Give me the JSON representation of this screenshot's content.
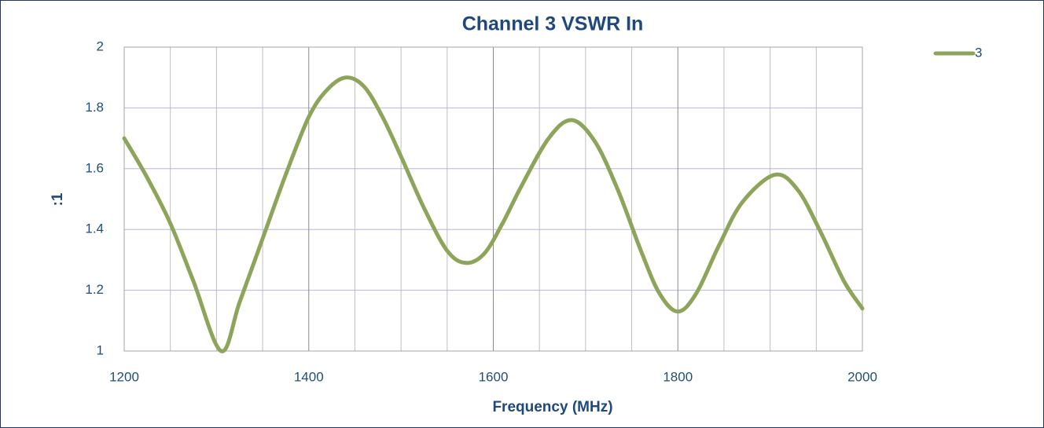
{
  "chart_data": {
    "type": "line",
    "title": "Channel 3 VSWR In",
    "x_label": "Frequency (MHz)",
    "y_label": ":1",
    "x": [
      1200,
      1225,
      1250,
      1275,
      1305,
      1325,
      1350,
      1375,
      1400,
      1420,
      1440,
      1460,
      1480,
      1500,
      1525,
      1550,
      1570,
      1590,
      1610,
      1630,
      1660,
      1685,
      1710,
      1735,
      1760,
      1780,
      1800,
      1820,
      1845,
      1870,
      1905,
      1930,
      1955,
      1980,
      2000
    ],
    "series": [
      {
        "name": "3",
        "color": "#8ca55a",
        "values": [
          1.7,
          1.57,
          1.42,
          1.23,
          1.0,
          1.16,
          1.37,
          1.58,
          1.77,
          1.86,
          1.9,
          1.87,
          1.77,
          1.64,
          1.47,
          1.33,
          1.29,
          1.32,
          1.42,
          1.54,
          1.7,
          1.76,
          1.69,
          1.53,
          1.33,
          1.19,
          1.13,
          1.19,
          1.35,
          1.49,
          1.58,
          1.53,
          1.39,
          1.23,
          1.14
        ]
      }
    ],
    "xlim": [
      1200,
      2000
    ],
    "xticks": [
      1200,
      1400,
      1600,
      1800,
      2000
    ],
    "x_minor_ticks": [
      1250,
      1300,
      1350,
      1450,
      1500,
      1550,
      1650,
      1700,
      1750,
      1850,
      1900,
      1950
    ],
    "ylim": [
      1,
      2
    ],
    "yticks": [
      1,
      1.2,
      1.4,
      1.6,
      1.8,
      2
    ],
    "grid": true,
    "legend": "top-right"
  }
}
